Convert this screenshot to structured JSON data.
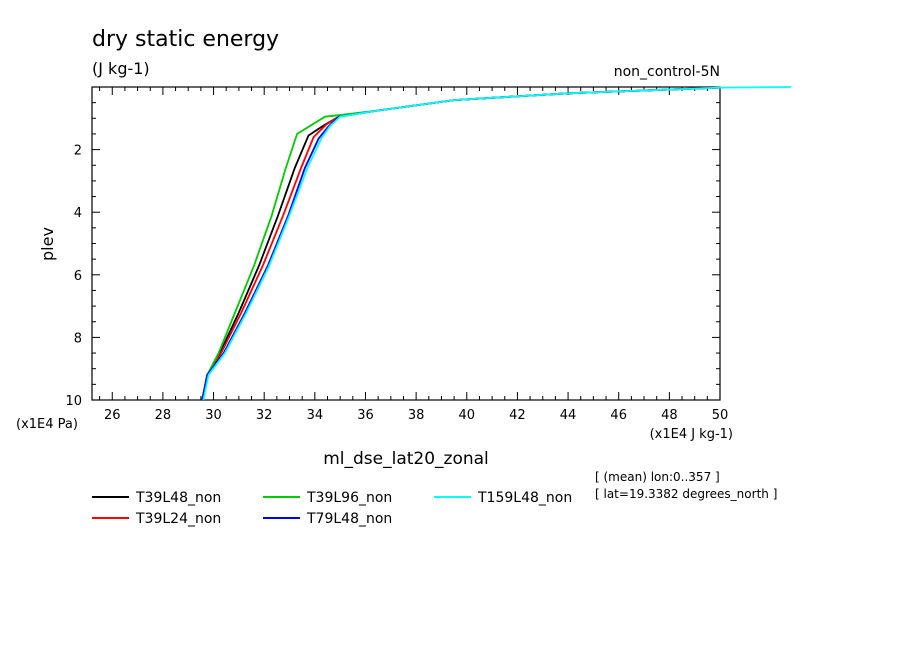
{
  "chart_data": {
    "type": "line",
    "title": "dry static energy",
    "units": "(J kg-1)",
    "subtitle_right": "non_control-5N",
    "xlabel": "ml_dse_lat20_zonal",
    "ylabel": "plev",
    "x_unit": "(x1E4 J kg-1)",
    "y_unit": "(x1E4 Pa)",
    "xlim": [
      25.2,
      50
    ],
    "ylim": [
      10,
      0
    ],
    "x_ticks": [
      26,
      28,
      30,
      32,
      34,
      36,
      38,
      40,
      42,
      44,
      46,
      48,
      50
    ],
    "y_ticks": [
      2,
      4,
      6,
      8,
      10
    ],
    "grid": false,
    "legend_position": "bottom",
    "info_lines": [
      "[ (mean) lon:0..357 ]",
      "[ lat=19.3382 degrees_north ]"
    ],
    "series": [
      {
        "name": "T39L48_non",
        "color": "#000000",
        "x": [
          29.55,
          29.75,
          30.25,
          31.0,
          31.8,
          32.55,
          33.2,
          33.75,
          34.4,
          34.95,
          36.5,
          39.5,
          44.0,
          50.0
        ],
        "y": [
          10.0,
          9.2,
          8.5,
          7.2,
          5.7,
          4.1,
          2.6,
          1.55,
          1.2,
          0.95,
          0.75,
          0.42,
          0.2,
          0.02
        ]
      },
      {
        "name": "T39L24_non",
        "color": "#ff0000",
        "x": [
          29.55,
          29.75,
          30.3,
          31.1,
          31.95,
          32.75,
          33.45,
          33.95,
          34.45,
          34.95,
          36.5,
          39.5,
          44.0,
          50.0
        ],
        "y": [
          10.0,
          9.2,
          8.5,
          7.2,
          5.7,
          4.1,
          2.6,
          1.6,
          1.2,
          0.95,
          0.75,
          0.42,
          0.2,
          0.02
        ]
      },
      {
        "name": "T39L96_non",
        "color": "#00cc00",
        "x": [
          29.55,
          29.75,
          30.2,
          30.85,
          31.6,
          32.3,
          32.85,
          33.3,
          34.4,
          34.95,
          36.5,
          39.5,
          44.0,
          50.0
        ],
        "y": [
          10.0,
          9.2,
          8.5,
          7.2,
          5.7,
          4.1,
          2.6,
          1.5,
          0.95,
          0.9,
          0.75,
          0.42,
          0.2,
          0.02
        ]
      },
      {
        "name": "T79L48_non",
        "color": "#0000ff",
        "x": [
          29.55,
          29.75,
          30.4,
          31.25,
          32.15,
          32.95,
          33.6,
          34.15,
          34.55,
          34.95,
          36.5,
          39.5,
          44.0,
          50.0
        ],
        "y": [
          10.0,
          9.2,
          8.5,
          7.2,
          5.7,
          4.1,
          2.6,
          1.65,
          1.25,
          0.95,
          0.75,
          0.42,
          0.2,
          0.02
        ]
      },
      {
        "name": "T159L48_non",
        "color": "#00ffff",
        "x": [
          29.6,
          29.8,
          30.45,
          31.3,
          32.2,
          33.0,
          33.7,
          34.25,
          34.6,
          35.0,
          36.5,
          39.5,
          44.0,
          50.0,
          52.8
        ],
        "y": [
          10.0,
          9.2,
          8.5,
          7.2,
          5.7,
          4.1,
          2.6,
          1.65,
          1.25,
          0.95,
          0.75,
          0.42,
          0.2,
          0.02,
          0.0
        ]
      }
    ]
  }
}
